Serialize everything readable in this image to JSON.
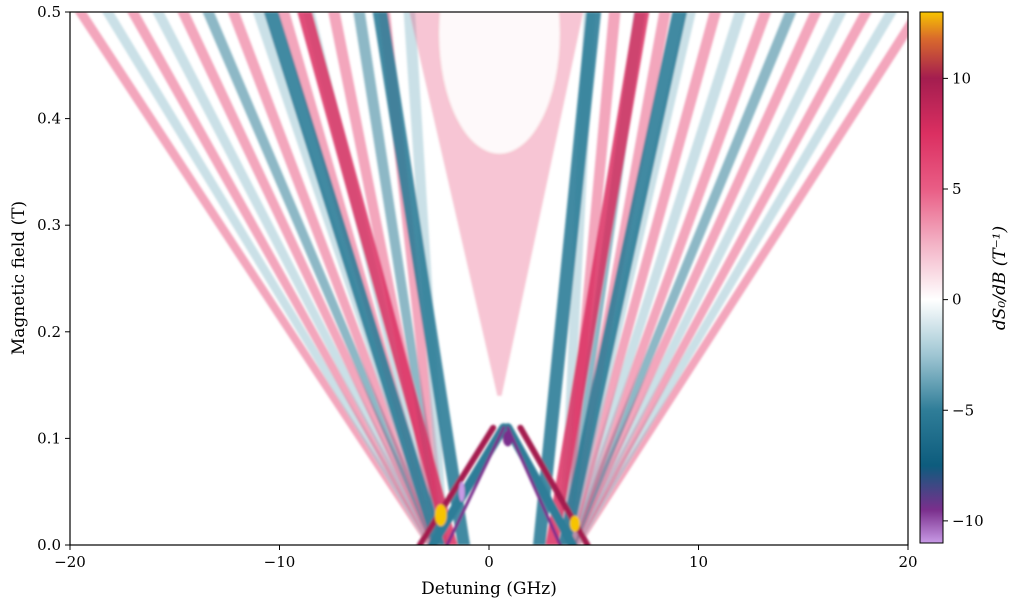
{
  "chart_data": {
    "type": "heatmap",
    "title": "",
    "xlabel": "Detuning (GHz)",
    "ylabel": "Magnetic field (T)",
    "xlim": [
      -20,
      20
    ],
    "ylim": [
      0.0,
      0.5
    ],
    "x_ticks": [
      {
        "value": -20,
        "label": "−20"
      },
      {
        "value": -10,
        "label": "−10"
      },
      {
        "value": 0,
        "label": "0"
      },
      {
        "value": 10,
        "label": "10"
      },
      {
        "value": 20,
        "label": "20"
      }
    ],
    "y_ticks": [
      {
        "value": 0.0,
        "label": "0.0"
      },
      {
        "value": 0.1,
        "label": "0.1"
      },
      {
        "value": 0.2,
        "label": "0.2"
      },
      {
        "value": 0.3,
        "label": "0.3"
      },
      {
        "value": 0.4,
        "label": "0.4"
      },
      {
        "value": 0.5,
        "label": "0.5"
      }
    ],
    "colorbar": {
      "label": "dS₀/dB (T⁻¹)",
      "vmin": -11,
      "vmax": 13,
      "ticks": [
        {
          "value": 10,
          "label": "10"
        },
        {
          "value": 5,
          "label": "5"
        },
        {
          "value": 0,
          "label": "0"
        },
        {
          "value": -5,
          "label": "−5"
        },
        {
          "value": -10,
          "label": "−10"
        }
      ],
      "colors": [
        {
          "value": -11,
          "color": "#c89ae6"
        },
        {
          "value": -9.5,
          "color": "#7a2f8c"
        },
        {
          "value": -7.5,
          "color": "#0d5c7d"
        },
        {
          "value": -5,
          "color": "#2f7d98"
        },
        {
          "value": -2.5,
          "color": "#9fc6d3"
        },
        {
          "value": 0,
          "color": "#ffffff"
        },
        {
          "value": 2.5,
          "color": "#f3b3c6"
        },
        {
          "value": 5,
          "color": "#e95d85"
        },
        {
          "value": 7.5,
          "color": "#db2f61"
        },
        {
          "value": 10,
          "color": "#a41d4f"
        },
        {
          "value": 11.8,
          "color": "#d96a2c"
        },
        {
          "value": 13,
          "color": "#f7c400"
        }
      ]
    },
    "grid": false
  }
}
